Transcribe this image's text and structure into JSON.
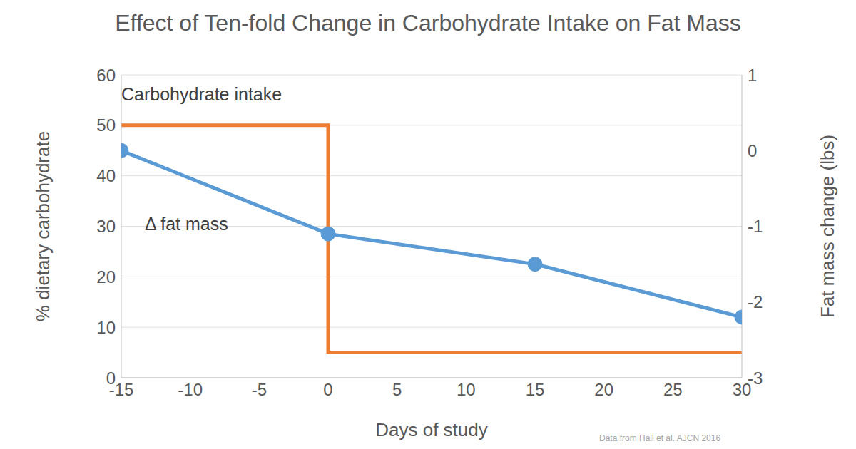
{
  "chart_data": {
    "type": "line",
    "title": "Effect of Ten-fold Change in Carbohydrate Intake on Fat Mass",
    "x_label": "Days of study",
    "y_label": "% dietary carbohydrate",
    "y2_label": "Fat mass change (lbs)",
    "source": "Data from Hall et al. AJCN 2016",
    "xlim": [
      -15,
      30
    ],
    "xticks": [
      -15,
      -10,
      -5,
      0,
      5,
      10,
      15,
      20,
      25,
      30
    ],
    "ylim": [
      0,
      60
    ],
    "yticks": [
      0,
      10,
      20,
      30,
      40,
      50,
      60
    ],
    "y2lim": [
      -3,
      1
    ],
    "y2ticks": [
      -3,
      -2,
      -1,
      0,
      1
    ],
    "grid": true,
    "series": [
      {
        "name": "Carbohydrate intake",
        "color": "#ED7D31",
        "x": [
          -15,
          0,
          0,
          30
        ],
        "values": [
          50,
          50,
          5,
          5
        ],
        "marker": "none"
      },
      {
        "name": "Δ fat mass",
        "color": "#5B9BD5",
        "axis": "y2",
        "x": [
          -15,
          0,
          15,
          30
        ],
        "values": [
          0,
          -1.1,
          -1.5,
          -2.2
        ],
        "marker": "circle"
      }
    ]
  }
}
